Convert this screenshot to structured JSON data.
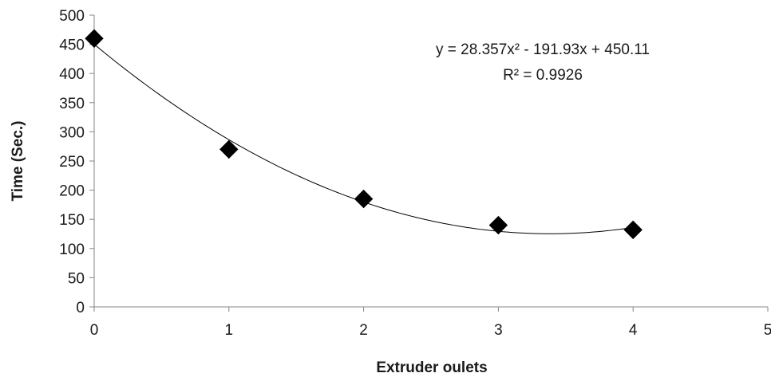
{
  "chart_data": {
    "type": "scatter",
    "title": "",
    "xlabel": "Extruder oulets",
    "ylabel": "Time (Sec.)",
    "xlim": [
      0,
      5
    ],
    "ylim": [
      0,
      500
    ],
    "xticks": [
      "0",
      "1",
      "2",
      "3",
      "4",
      "5"
    ],
    "yticks": [
      "0",
      "50",
      "100",
      "150",
      "200",
      "250",
      "300",
      "350",
      "400",
      "450",
      "500"
    ],
    "grid": false,
    "legend": "none",
    "series": [
      {
        "marker": "diamond",
        "color": "#000000",
        "x": [
          0,
          1,
          2,
          3,
          4
        ],
        "y": [
          460,
          270,
          185,
          140,
          132
        ]
      }
    ],
    "trendline": {
      "type": "polynomial",
      "order": 2,
      "coefficients": [
        28.357,
        -191.93,
        450.11
      ],
      "color": "#000000"
    },
    "annotations": {
      "equation": "y = 28.357x² - 191.93x + 450.11",
      "r_squared": "R² = 0.9926"
    }
  }
}
